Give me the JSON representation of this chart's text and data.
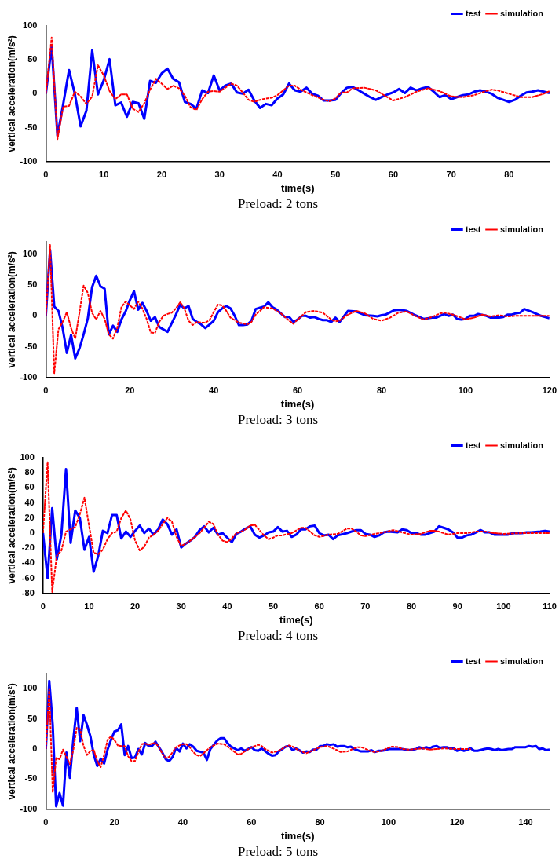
{
  "chart_data": [
    {
      "type": "line",
      "title": "Preload: 2 tons",
      "xlabel": "time(s)",
      "ylabel": "vertical acceleration(m/s²)",
      "xlim": [
        0,
        87
      ],
      "xticks": [
        0,
        10,
        20,
        30,
        40,
        50,
        60,
        70,
        80
      ],
      "ylim": [
        -100,
        100
      ],
      "yticks": [
        -100,
        -50,
        0,
        50,
        100
      ],
      "grid": false,
      "legend": "top right",
      "marker": "none",
      "series": [
        {
          "name": "test",
          "color": "#0000ff",
          "line_style": "solid",
          "x": [
            0,
            1,
            2,
            3,
            4,
            5,
            6,
            7,
            8,
            9,
            10,
            11,
            12,
            13,
            14,
            15,
            16,
            17,
            18,
            19,
            20,
            21,
            22,
            23,
            24,
            25,
            26,
            27,
            28,
            29,
            30,
            31,
            32,
            33,
            34,
            35,
            36,
            37,
            38,
            39,
            40,
            41,
            42,
            43,
            44,
            45,
            46,
            47,
            48,
            49,
            50,
            51,
            52,
            53,
            54,
            55,
            56,
            57,
            58,
            59,
            60,
            61,
            62,
            63,
            64,
            65,
            66,
            67,
            68,
            69,
            70,
            71,
            72,
            73,
            74,
            75,
            76,
            77,
            78,
            79,
            80,
            81,
            82,
            83,
            84,
            85,
            86,
            87
          ],
          "values": [
            0,
            70,
            -62,
            -15,
            35,
            0,
            -48,
            -25,
            64,
            -1,
            20,
            51,
            -17,
            -13,
            -34,
            -12,
            -14,
            -37,
            19,
            16,
            30,
            37,
            22,
            17,
            -12,
            -15,
            -22,
            5,
            1,
            27,
            5,
            12,
            15,
            2,
            0,
            6,
            -10,
            -21,
            -15,
            -17,
            -7,
            -1,
            15,
            5,
            3,
            9,
            0,
            -3,
            -10,
            -10,
            -9,
            1,
            9,
            10,
            5,
            0,
            -5,
            -9,
            -5,
            -1,
            2,
            7,
            1,
            9,
            5,
            8,
            10,
            3,
            -5,
            -2,
            -8,
            -5,
            -2,
            -1,
            3,
            5,
            3,
            0,
            -6,
            -9,
            -12,
            -9,
            -3,
            2,
            3,
            5,
            3,
            1
          ]
        },
        {
          "name": "simulation",
          "color": "#ff0000",
          "line_style": "dotted",
          "x": [
            0,
            1,
            2,
            3,
            4,
            5,
            6,
            7,
            8,
            9,
            10,
            11,
            12,
            13,
            14,
            15,
            16,
            17,
            18,
            19,
            20,
            21,
            22,
            23,
            24,
            25,
            26,
            27,
            28,
            29,
            30,
            31,
            32,
            33,
            34,
            35,
            36,
            37,
            38,
            39,
            40,
            41,
            42,
            43,
            44,
            46,
            48,
            49,
            50,
            51,
            52,
            53,
            55,
            57,
            58,
            60,
            62,
            64,
            66,
            68,
            70,
            72,
            74,
            76,
            77,
            78,
            80,
            82,
            84,
            86,
            87
          ],
          "values": [
            0,
            83,
            -67,
            -19,
            -18,
            3,
            -4,
            -15,
            -4,
            42,
            27,
            4,
            -8,
            -1,
            -1,
            -22,
            -27,
            -14,
            6,
            22,
            15,
            7,
            12,
            8,
            -3,
            -20,
            -24,
            -8,
            3,
            4,
            3,
            9,
            15,
            12,
            2,
            -9,
            -12,
            -9,
            -7,
            -6,
            -2,
            5,
            12,
            12,
            6,
            -2,
            -9,
            -11,
            -7,
            2,
            2,
            8,
            9,
            5,
            0,
            -10,
            -5,
            3,
            8,
            4,
            -4,
            -5,
            -2,
            4,
            6,
            5,
            0,
            -5,
            -5,
            0,
            4
          ]
        }
      ]
    },
    {
      "type": "line",
      "title": "Preload: 3 tons",
      "xlabel": "time(s)",
      "ylabel": "vertical acceleration(m/s²)",
      "xlim": [
        0,
        120
      ],
      "xticks": [
        0,
        20,
        40,
        60,
        80,
        100,
        120
      ],
      "ylim": [
        -100,
        120
      ],
      "yticks": [
        -100,
        -50,
        0,
        50,
        100
      ],
      "grid": false,
      "legend": "top right",
      "marker": "none",
      "series": [
        {
          "name": "test",
          "color": "#0000ff",
          "line_style": "solid",
          "x": [
            0,
            1,
            2,
            3,
            4,
            5,
            6,
            7,
            8,
            9,
            10,
            11,
            12,
            13,
            14,
            15,
            16,
            17,
            18,
            19,
            20,
            21,
            22,
            23,
            24,
            25,
            26,
            27,
            29,
            31,
            32,
            33,
            34,
            35,
            36,
            37,
            38,
            39,
            40,
            41,
            42,
            43,
            44,
            45,
            46,
            47,
            48,
            49,
            50,
            51,
            52,
            53,
            54,
            55,
            56,
            57,
            58,
            59,
            60,
            61,
            62,
            63,
            64,
            65,
            66,
            67,
            68,
            69,
            70,
            72,
            74,
            76,
            78,
            79,
            80,
            81,
            83,
            84,
            86,
            88,
            90,
            92,
            93,
            95,
            96,
            97,
            98,
            99,
            100,
            101,
            102,
            103,
            105,
            106,
            108,
            109,
            110,
            111,
            112,
            113,
            114,
            116,
            118,
            120
          ],
          "values": [
            0,
            107,
            15,
            8,
            -20,
            -60,
            -31,
            -69,
            -53,
            -30,
            -4,
            46,
            65,
            48,
            44,
            -30,
            -16,
            -26,
            -6,
            7,
            25,
            40,
            10,
            21,
            8,
            -8,
            -2,
            -18,
            -26,
            2,
            18,
            12,
            16,
            -5,
            -10,
            -14,
            -20,
            -14,
            -8,
            6,
            12,
            16,
            12,
            0,
            -15,
            -15,
            -14,
            -8,
            11,
            13,
            15,
            22,
            14,
            10,
            4,
            -2,
            -2,
            -10,
            -6,
            0,
            0,
            -3,
            -2,
            -5,
            -7,
            -7,
            -10,
            -3,
            -10,
            8,
            7,
            1,
            0,
            -1,
            1,
            2,
            9,
            10,
            8,
            1,
            -5,
            -3,
            -3,
            3,
            0,
            2,
            -5,
            -6,
            -5,
            0,
            0,
            3,
            0,
            -3,
            -3,
            -2,
            2,
            2,
            4,
            5,
            11,
            6,
            0,
            -4
          ]
        },
        {
          "name": "simulation",
          "color": "#ff0000",
          "line_style": "dotted",
          "x": [
            0,
            1,
            2,
            3,
            4,
            5,
            6,
            7,
            8,
            9,
            10,
            11,
            12,
            13,
            14,
            15,
            16,
            17,
            18,
            19,
            20,
            21,
            22,
            23,
            24,
            25,
            26,
            27,
            28,
            29,
            30,
            31,
            32,
            33,
            34,
            35,
            36,
            37,
            38,
            39,
            40,
            41,
            42,
            43,
            44,
            45,
            46,
            48,
            49,
            50,
            52,
            54,
            56,
            58,
            59,
            60,
            62,
            64,
            66,
            68,
            69,
            70,
            72,
            74,
            76,
            78,
            80,
            82,
            84,
            86,
            88,
            90,
            92,
            94,
            95,
            97,
            99,
            100,
            102,
            104,
            106,
            108,
            110,
            112,
            120
          ],
          "values": [
            0,
            115,
            -93,
            -22,
            -10,
            6,
            -20,
            -37,
            5,
            49,
            37,
            5,
            -6,
            8,
            -5,
            -30,
            -37,
            -20,
            14,
            23,
            17,
            11,
            23,
            12,
            -5,
            -27,
            -28,
            -10,
            0,
            3,
            5,
            12,
            22,
            12,
            -8,
            -15,
            -10,
            -11,
            -11,
            -7,
            6,
            18,
            17,
            8,
            -3,
            -7,
            -11,
            -14,
            -10,
            2,
            14,
            12,
            4,
            -8,
            -13,
            -6,
            6,
            8,
            5,
            -6,
            -9,
            -8,
            2,
            8,
            4,
            -5,
            -8,
            -3,
            5,
            7,
            0,
            -6,
            -2,
            4,
            5,
            2,
            -3,
            -6,
            -3,
            2,
            -1,
            1,
            -1,
            0,
            0
          ]
        }
      ]
    },
    {
      "type": "line",
      "title": "Preload: 4 tons",
      "xlabel": "time(s)",
      "ylabel": "vertical acceleration(m/s²)",
      "xlim": [
        0,
        110
      ],
      "xticks": [
        0,
        10,
        20,
        30,
        40,
        50,
        60,
        70,
        80,
        90,
        100,
        110
      ],
      "ylim": [
        -80,
        100
      ],
      "yticks": [
        -80,
        -60,
        -40,
        -20,
        0,
        20,
        40,
        60,
        80,
        100
      ],
      "grid": false,
      "legend": "top right",
      "marker": "none",
      "series": [
        {
          "name": "test",
          "color": "#0000ff",
          "line_style": "solid",
          "x": [
            0,
            1,
            2,
            3,
            4,
            5,
            6,
            7,
            8,
            9,
            10,
            11,
            12,
            13,
            14,
            15,
            16,
            17,
            18,
            19,
            20,
            21,
            22,
            23,
            24,
            25,
            26,
            27,
            28,
            29,
            30,
            31,
            32,
            33,
            34,
            35,
            36,
            37,
            38,
            39,
            40,
            41,
            42,
            43,
            44,
            45,
            46,
            47,
            48,
            49,
            50,
            51,
            52,
            53,
            54,
            55,
            56,
            57,
            58,
            59,
            60,
            61,
            62,
            63,
            64,
            66,
            68,
            69,
            70,
            71,
            72,
            73,
            74,
            75,
            77,
            78,
            79,
            80,
            81,
            82,
            83,
            85,
            86,
            87,
            88,
            89,
            90,
            91,
            92,
            93,
            94,
            95,
            96,
            97,
            98,
            100,
            101,
            102,
            104,
            105,
            106,
            108,
            109,
            110
          ],
          "values": [
            0,
            -60,
            33,
            -35,
            -2,
            85,
            -13,
            30,
            20,
            -22,
            -5,
            -51,
            -30,
            3,
            0,
            24,
            24,
            -7,
            2,
            -5,
            3,
            10,
            0,
            6,
            -2,
            5,
            18,
            12,
            -2,
            5,
            -19,
            -14,
            -10,
            -5,
            4,
            9,
            1,
            7,
            -2,
            0,
            -6,
            -12,
            -1,
            2,
            6,
            9,
            -2,
            -6,
            -3,
            1,
            2,
            8,
            2,
            3,
            -5,
            -2,
            5,
            5,
            9,
            10,
            0,
            -3,
            -2,
            -8,
            -3,
            0,
            4,
            4,
            -1,
            -2,
            -5,
            -3,
            1,
            2,
            1,
            5,
            4,
            0,
            0,
            -2,
            -2,
            2,
            9,
            7,
            5,
            1,
            -6,
            -6,
            -3,
            -2,
            1,
            4,
            1,
            1,
            -2,
            -2,
            -2,
            0,
            0,
            1,
            1,
            2,
            3,
            2
          ]
        },
        {
          "name": "simulation",
          "color": "#ff0000",
          "line_style": "dotted",
          "x": [
            0,
            1,
            2,
            3,
            4,
            5,
            6,
            7,
            8,
            9,
            10,
            11,
            12,
            13,
            14,
            15,
            16,
            17,
            18,
            19,
            20,
            21,
            22,
            23,
            24,
            25,
            26,
            27,
            28,
            29,
            30,
            31,
            32,
            33,
            34,
            35,
            36,
            37,
            38,
            39,
            40,
            41,
            42,
            43,
            44,
            45,
            46,
            47,
            48,
            49,
            50,
            51,
            52,
            54,
            56,
            57,
            58,
            59,
            60,
            62,
            64,
            66,
            67,
            68,
            69,
            70,
            72,
            74,
            76,
            78,
            80,
            82,
            84,
            85,
            86,
            88,
            90,
            92,
            94,
            96,
            98,
            100,
            104,
            110
          ],
          "values": [
            0,
            94,
            -78,
            -30,
            -23,
            2,
            5,
            8,
            25,
            47,
            10,
            -26,
            -28,
            -22,
            -8,
            0,
            2,
            20,
            30,
            18,
            -10,
            -23,
            -18,
            -6,
            -2,
            3,
            12,
            20,
            15,
            -5,
            -17,
            -14,
            -10,
            -5,
            0,
            7,
            15,
            12,
            -2,
            -10,
            -12,
            -7,
            0,
            2,
            5,
            10,
            11,
            4,
            -3,
            -8,
            -6,
            -3,
            -3,
            0,
            7,
            7,
            2,
            -3,
            -5,
            -2,
            -1,
            6,
            6,
            2,
            -3,
            -4,
            -1,
            1,
            4,
            1,
            -2,
            -1,
            3,
            3,
            2,
            -2,
            0,
            0,
            2,
            2,
            0,
            -1,
            0,
            0
          ]
        }
      ]
    },
    {
      "type": "line",
      "title": "Preload: 5 tons",
      "xlabel": "time(s)",
      "ylabel": "vertical acceleration(m/s²)",
      "xlim": [
        0,
        147
      ],
      "xticks": [
        0,
        20,
        40,
        60,
        80,
        100,
        120,
        140
      ],
      "ylim": [
        -100,
        125
      ],
      "yticks": [
        -100,
        -50,
        0,
        50,
        100
      ],
      "grid": false,
      "legend": "top right",
      "marker": "none",
      "series": [
        {
          "name": "test",
          "color": "#0000ff",
          "line_style": "solid",
          "x": [
            0,
            1,
            2,
            3,
            4,
            5,
            6,
            7,
            8,
            9,
            10,
            11,
            12,
            13,
            14,
            15,
            16,
            17,
            18,
            19,
            20,
            21,
            22,
            23,
            24,
            25,
            26,
            27,
            28,
            29,
            30,
            31,
            32,
            34,
            35,
            36,
            37,
            38,
            39,
            40,
            41,
            42,
            43,
            44,
            46,
            47,
            48,
            50,
            51,
            52,
            53,
            54,
            56,
            57,
            58,
            60,
            61,
            62,
            63,
            65,
            66,
            67,
            68,
            70,
            71,
            72,
            73,
            74,
            75,
            76,
            77,
            78,
            79,
            80,
            81,
            82,
            83,
            84,
            85,
            86,
            87,
            88,
            89,
            90,
            92,
            93,
            94,
            95,
            96,
            97,
            98,
            99,
            100,
            102,
            104,
            106,
            107,
            108,
            109,
            110,
            111,
            112,
            113,
            114,
            115,
            116,
            117,
            118,
            119,
            120,
            121,
            122,
            123,
            124,
            125,
            126,
            128,
            129,
            130,
            131,
            132,
            133,
            134,
            135,
            136,
            137,
            138,
            139,
            140,
            141,
            142,
            143,
            144,
            145,
            146,
            147
          ],
          "values": [
            0,
            113,
            40,
            -95,
            -73,
            -94,
            -6,
            -48,
            15,
            68,
            13,
            56,
            40,
            21,
            -10,
            -28,
            -16,
            -24,
            -1,
            15,
            29,
            31,
            41,
            -10,
            5,
            -15,
            -14,
            0,
            -9,
            10,
            5,
            5,
            12,
            -6,
            -17,
            -20,
            -13,
            2,
            -4,
            9,
            1,
            8,
            4,
            -3,
            -6,
            -18,
            0,
            14,
            18,
            18,
            10,
            4,
            -2,
            1,
            -3,
            3,
            -2,
            -3,
            1,
            -8,
            -11,
            -10,
            -4,
            4,
            5,
            -2,
            1,
            -2,
            -6,
            -4,
            -5,
            -1,
            -1,
            5,
            5,
            8,
            7,
            8,
            4,
            5,
            5,
            3,
            4,
            0,
            -4,
            -4,
            -4,
            -2,
            -5,
            -3,
            -3,
            -2,
            0,
            0,
            0,
            -2,
            -1,
            0,
            3,
            1,
            3,
            1,
            4,
            5,
            2,
            3,
            3,
            1,
            1,
            -3,
            0,
            -3,
            -1,
            1,
            -3,
            -3,
            0,
            1,
            0,
            -2,
            0,
            -2,
            -1,
            0,
            0,
            3,
            3,
            3,
            3,
            5,
            4,
            5,
            0,
            1,
            -2,
            -1
          ]
        },
        {
          "name": "simulation",
          "color": "#ff0000",
          "line_style": "dotted",
          "x": [
            0,
            1,
            2,
            3,
            4,
            5,
            6,
            7,
            8,
            9,
            10,
            11,
            12,
            13,
            14,
            15,
            16,
            17,
            18,
            19,
            20,
            21,
            22,
            23,
            24,
            25,
            26,
            27,
            28,
            29,
            30,
            31,
            32,
            33,
            34,
            35,
            36,
            37,
            38,
            39,
            40,
            41,
            42,
            43,
            44,
            45,
            46,
            47,
            48,
            50,
            52,
            54,
            56,
            57,
            58,
            60,
            62,
            63,
            64,
            66,
            68,
            70,
            71,
            72,
            74,
            76,
            78,
            80,
            82,
            83,
            85,
            86,
            88,
            90,
            91,
            92,
            93,
            95,
            96,
            98,
            100,
            101,
            103,
            104,
            106,
            108,
            110,
            112,
            114,
            116,
            120,
            124
          ],
          "values": [
            0,
            100,
            -72,
            -15,
            -17,
            -1,
            -13,
            -25,
            -2,
            35,
            33,
            5,
            -10,
            -3,
            -2,
            -20,
            -30,
            -10,
            15,
            21,
            15,
            6,
            5,
            5,
            -12,
            -20,
            -20,
            -5,
            8,
            9,
            7,
            9,
            10,
            3,
            -8,
            -15,
            -13,
            -5,
            3,
            6,
            8,
            8,
            3,
            -5,
            -10,
            -12,
            -7,
            -2,
            3,
            9,
            8,
            0,
            -9,
            -8,
            -4,
            3,
            7,
            5,
            0,
            -6,
            -3,
            4,
            6,
            4,
            -3,
            -7,
            -2,
            3,
            5,
            3,
            -2,
            -5,
            -4,
            1,
            3,
            3,
            1,
            -4,
            -5,
            -3,
            2,
            4,
            3,
            0,
            -1,
            0,
            1,
            -1,
            0,
            1,
            0,
            0
          ]
        }
      ]
    }
  ]
}
